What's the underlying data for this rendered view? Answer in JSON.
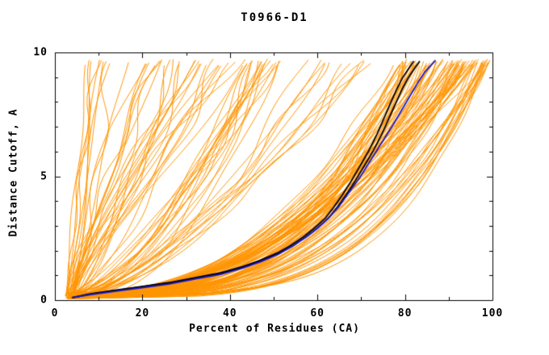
{
  "chart_data": {
    "type": "line",
    "title": "T0966-D1",
    "xlabel": "Percent of Residues (CA)",
    "ylabel": "Distance Cutoff, A",
    "xlim": [
      0,
      100
    ],
    "ylim": [
      0,
      10
    ],
    "x_ticks": [
      0,
      20,
      40,
      60,
      80,
      100
    ],
    "y_ticks": [
      0,
      5,
      10
    ],
    "x_minor_step": 10,
    "y_minor_step": 1,
    "grid": false,
    "legend": "none",
    "background": "#ffffff",
    "frame_color": "#000000",
    "seed": 1966,
    "groups": [
      {
        "name": "server-model-curves",
        "color": "#ff9400",
        "width": 1,
        "subgroups": [
          {
            "label": "high-accuracy-models",
            "count": 80,
            "x0_range": [
              2.5,
              5.5
            ],
            "xtop_range": [
              78,
              100
            ],
            "p_range": [
              0.28,
              0.5
            ],
            "wiggle": [
              0.3,
              1.5
            ]
          },
          {
            "label": "right-edge-models",
            "count": 12,
            "x0_range": [
              2.5,
              5.5
            ],
            "xtop_range": [
              97,
              100
            ],
            "p_range": [
              0.2,
              0.3
            ],
            "wiggle": [
              0.2,
              0.8
            ]
          },
          {
            "label": "mid-accuracy-models",
            "count": 28,
            "x0_range": [
              2.5,
              5.5
            ],
            "xtop_range": [
              46,
              78
            ],
            "p_range": [
              0.45,
              0.8
            ],
            "wiggle": [
              0.5,
              2.0
            ]
          },
          {
            "label": "low-accuracy-models",
            "count": 35,
            "x0_range": [
              2.5,
              5.5
            ],
            "xtop_range": [
              8,
              45
            ],
            "p_range": [
              0.7,
              1.4
            ],
            "wiggle": [
              0.5,
              2.5
            ]
          }
        ]
      },
      {
        "name": "highlighted-models-black",
        "color": "#000000",
        "width": 1.8,
        "offsets": [
          -0.5,
          0.9
        ],
        "points": [
          [
            4,
            0.1
          ],
          [
            8,
            0.25
          ],
          [
            14,
            0.4
          ],
          [
            20,
            0.55
          ],
          [
            26,
            0.7
          ],
          [
            32,
            0.9
          ],
          [
            38,
            1.1
          ],
          [
            43,
            1.35
          ],
          [
            47,
            1.6
          ],
          [
            51,
            1.9
          ],
          [
            54,
            2.2
          ],
          [
            57,
            2.55
          ],
          [
            59.5,
            2.9
          ],
          [
            62,
            3.3
          ],
          [
            64,
            3.75
          ],
          [
            66,
            4.25
          ],
          [
            68,
            4.8
          ],
          [
            70,
            5.4
          ],
          [
            72,
            6.0
          ],
          [
            74,
            6.7
          ],
          [
            75.5,
            7.3
          ],
          [
            77,
            7.9
          ],
          [
            78.5,
            8.5
          ],
          [
            80,
            9.0
          ],
          [
            81.5,
            9.4
          ],
          [
            82.5,
            9.65
          ]
        ]
      },
      {
        "name": "highlighted-model-blue",
        "color": "#1a1acd",
        "width": 1.8,
        "offsets": [
          0
        ],
        "points": [
          [
            4,
            0.1
          ],
          [
            8,
            0.22
          ],
          [
            14,
            0.36
          ],
          [
            20,
            0.5
          ],
          [
            26,
            0.65
          ],
          [
            32,
            0.85
          ],
          [
            38,
            1.05
          ],
          [
            43,
            1.3
          ],
          [
            47,
            1.55
          ],
          [
            51,
            1.85
          ],
          [
            54,
            2.15
          ],
          [
            57,
            2.5
          ],
          [
            60,
            2.9
          ],
          [
            62.5,
            3.3
          ],
          [
            65,
            3.8
          ],
          [
            67,
            4.3
          ],
          [
            69.5,
            4.9
          ],
          [
            72,
            5.6
          ],
          [
            74.5,
            6.3
          ],
          [
            77,
            7.0
          ],
          [
            79,
            7.6
          ],
          [
            81,
            8.2
          ],
          [
            83,
            8.8
          ],
          [
            84.5,
            9.2
          ],
          [
            86,
            9.5
          ],
          [
            87,
            9.68
          ]
        ]
      }
    ]
  }
}
